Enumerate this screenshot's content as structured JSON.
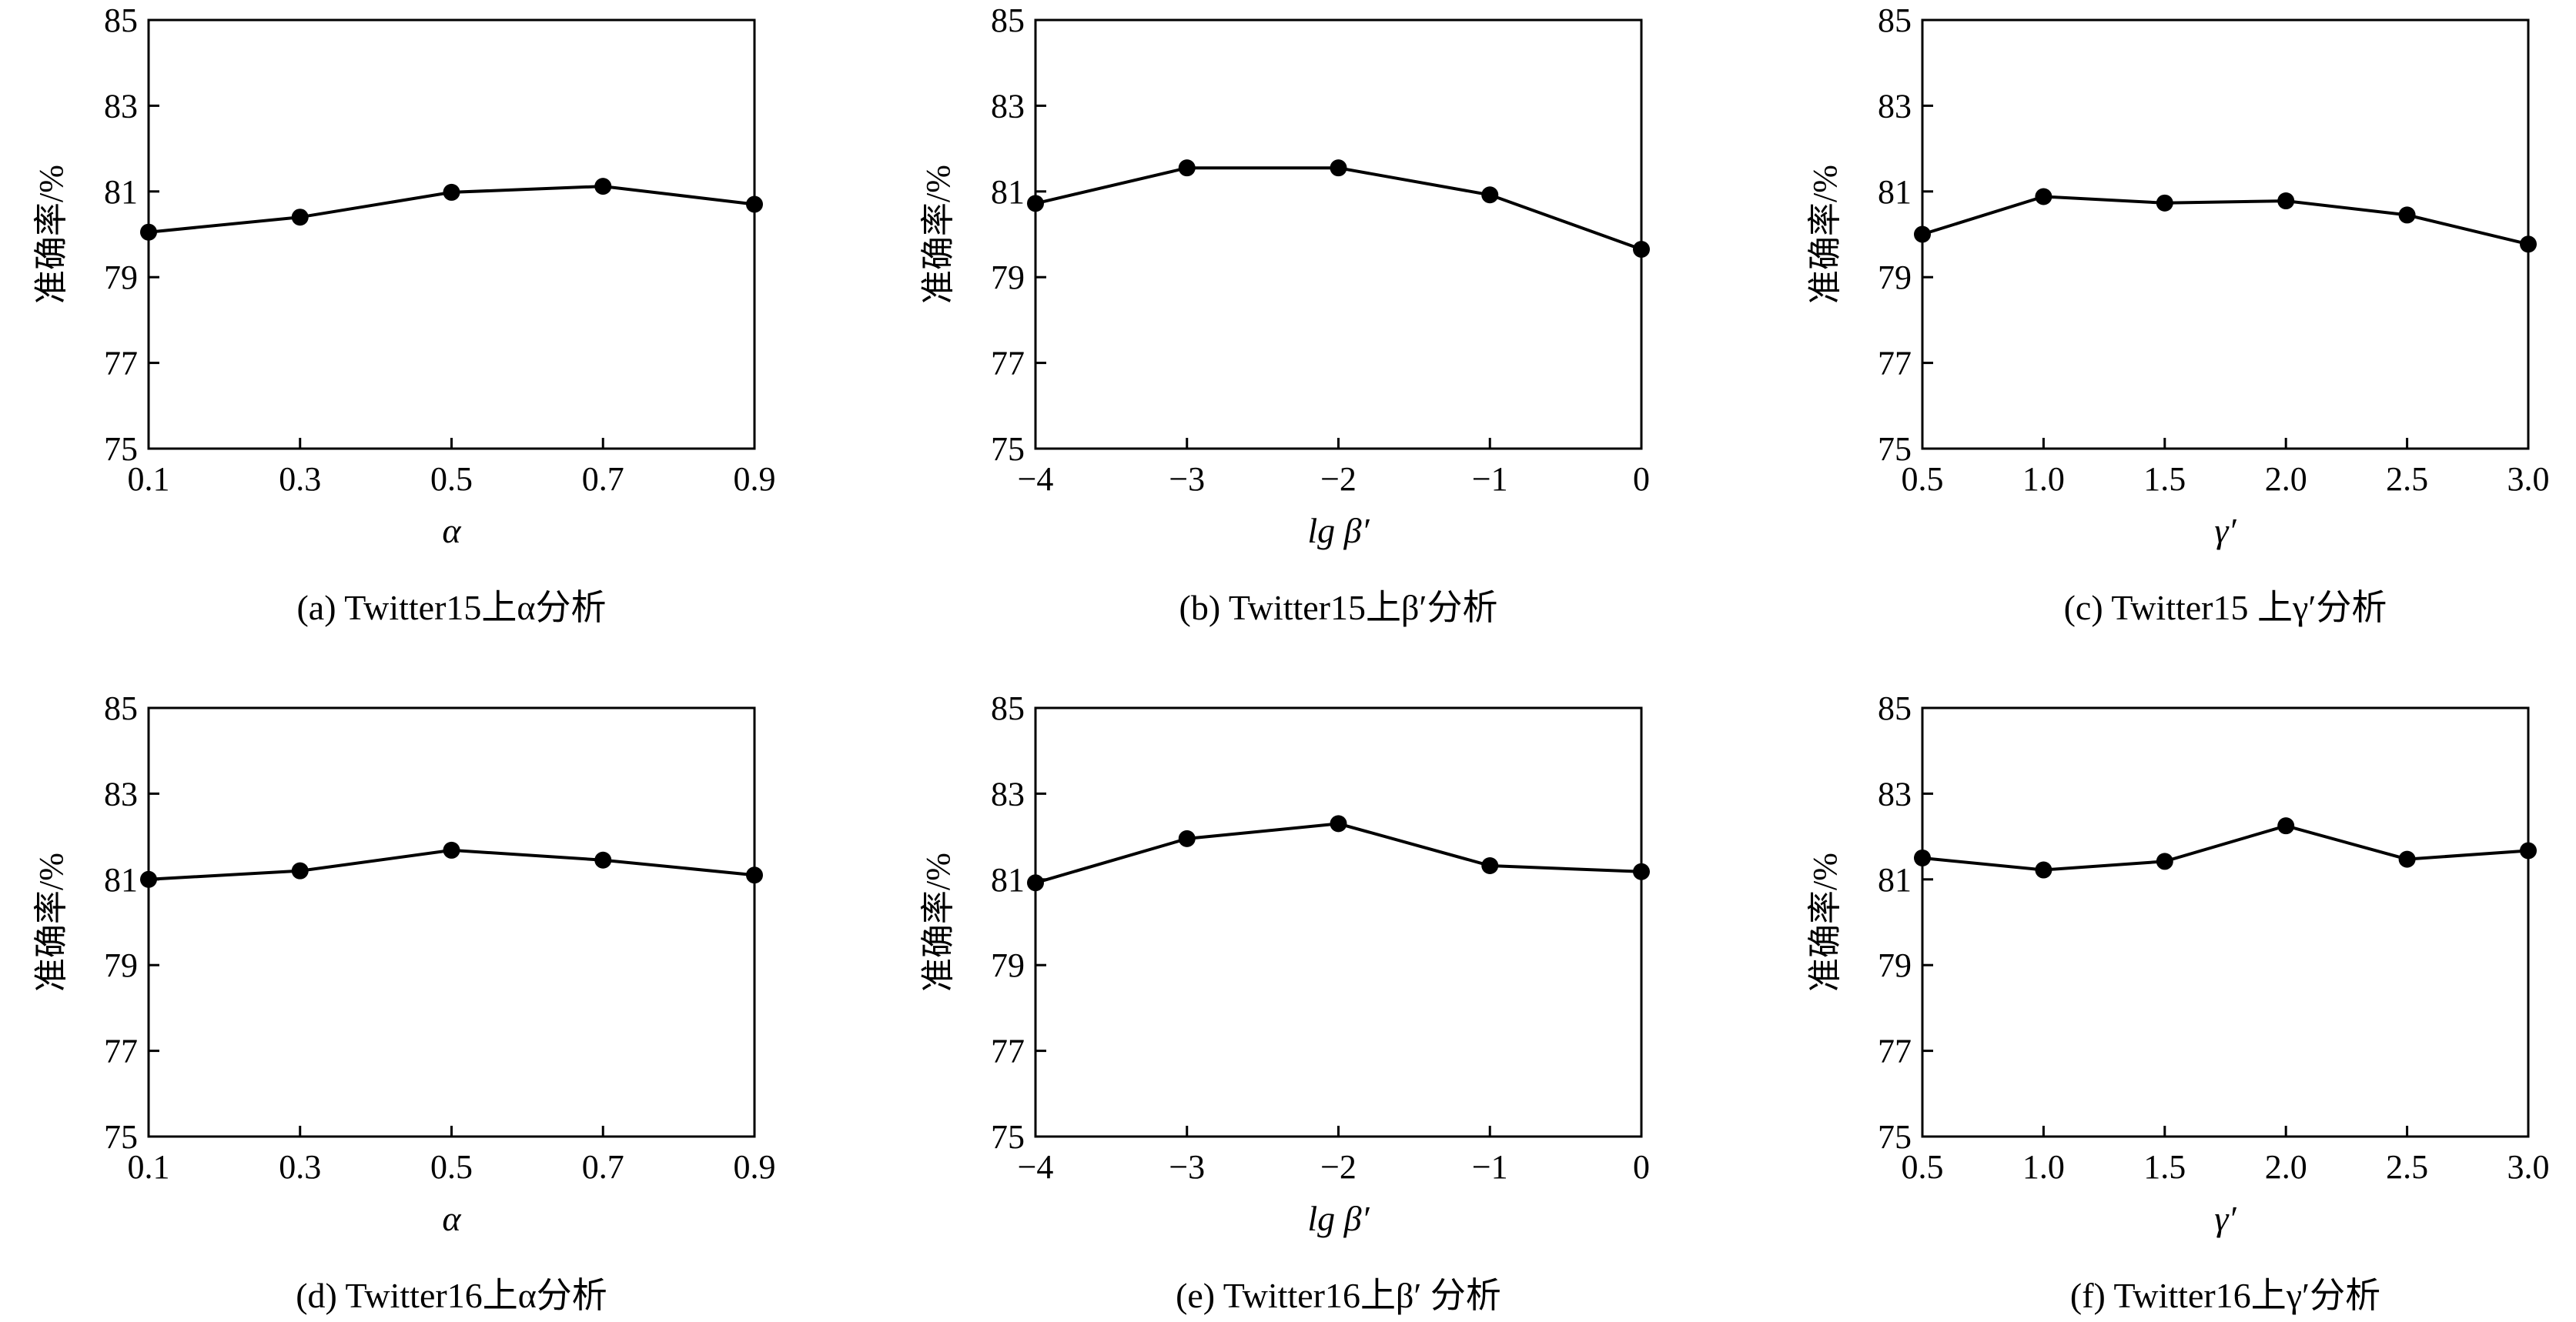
{
  "figure": {
    "y_axis_label": "准确率/%",
    "y_ticks": [
      "75",
      "77",
      "79",
      "81",
      "83",
      "85"
    ]
  },
  "chart_data": [
    {
      "type": "line",
      "caption": "(a)  Twitter15上α分析",
      "xlabel": "α",
      "ylabel": "准确率/%",
      "x_tick_labels": [
        "0.1",
        "0.3",
        "0.5",
        "0.7",
        "0.9"
      ],
      "xlim": [
        0.1,
        0.9
      ],
      "ylim": [
        75,
        85
      ],
      "grid": false,
      "series": [
        {
          "x": [
            0.1,
            0.3,
            0.5,
            0.7,
            0.9
          ],
          "values": [
            80.05,
            80.4,
            80.98,
            81.12,
            80.7
          ]
        }
      ]
    },
    {
      "type": "line",
      "caption": "(b)  Twitter15上β′分析",
      "xlabel": "lg β′",
      "ylabel": "准确率/%",
      "x_tick_labels": [
        "−4",
        "−3",
        "−2",
        "−1",
        "0"
      ],
      "xlim": [
        -4,
        0
      ],
      "ylim": [
        75,
        85
      ],
      "grid": false,
      "series": [
        {
          "x": [
            -4,
            -3,
            -2,
            -1,
            0
          ],
          "values": [
            80.72,
            81.55,
            81.55,
            80.92,
            79.65
          ]
        }
      ]
    },
    {
      "type": "line",
      "caption": "(c)  Twitter15 上γ′分析",
      "xlabel": "γ′",
      "ylabel": "准确率/%",
      "x_tick_labels": [
        "0.5",
        "1.0",
        "1.5",
        "2.0",
        "2.5",
        "3.0"
      ],
      "xlim": [
        0.5,
        3.0
      ],
      "ylim": [
        75,
        85
      ],
      "grid": false,
      "series": [
        {
          "x": [
            0.5,
            1.0,
            1.5,
            2.0,
            2.5,
            3.0
          ],
          "values": [
            80.0,
            80.88,
            80.73,
            80.78,
            80.45,
            79.77
          ]
        }
      ]
    },
    {
      "type": "line",
      "caption": "(d)  Twitter16上α分析",
      "xlabel": "α",
      "ylabel": "准确率/%",
      "x_tick_labels": [
        "0.1",
        "0.3",
        "0.5",
        "0.7",
        "0.9"
      ],
      "xlim": [
        0.1,
        0.9
      ],
      "ylim": [
        75,
        85
      ],
      "grid": false,
      "series": [
        {
          "x": [
            0.1,
            0.3,
            0.5,
            0.7,
            0.9
          ],
          "values": [
            81.0,
            81.2,
            81.68,
            81.45,
            81.1
          ]
        }
      ]
    },
    {
      "type": "line",
      "caption": "(e)  Twitter16上β′ 分析",
      "xlabel": "lg β′",
      "ylabel": "准确率/%",
      "x_tick_labels": [
        "−4",
        "−3",
        "−2",
        "−1",
        "0"
      ],
      "xlim": [
        -4,
        0
      ],
      "ylim": [
        75,
        85
      ],
      "grid": false,
      "series": [
        {
          "x": [
            -4,
            -3,
            -2,
            -1,
            0
          ],
          "values": [
            80.92,
            81.95,
            82.3,
            81.32,
            81.18
          ]
        }
      ]
    },
    {
      "type": "line",
      "caption": "(f)  Twitter16上γ′分析",
      "xlabel": "γ′",
      "ylabel": "准确率/%",
      "x_tick_labels": [
        "0.5",
        "1.0",
        "1.5",
        "2.0",
        "2.5",
        "3.0"
      ],
      "xlim": [
        0.5,
        3.0
      ],
      "ylim": [
        75,
        85
      ],
      "grid": false,
      "series": [
        {
          "x": [
            0.5,
            1.0,
            1.5,
            2.0,
            2.5,
            3.0
          ],
          "values": [
            81.5,
            81.22,
            81.42,
            82.25,
            81.47,
            81.67
          ]
        }
      ]
    }
  ]
}
